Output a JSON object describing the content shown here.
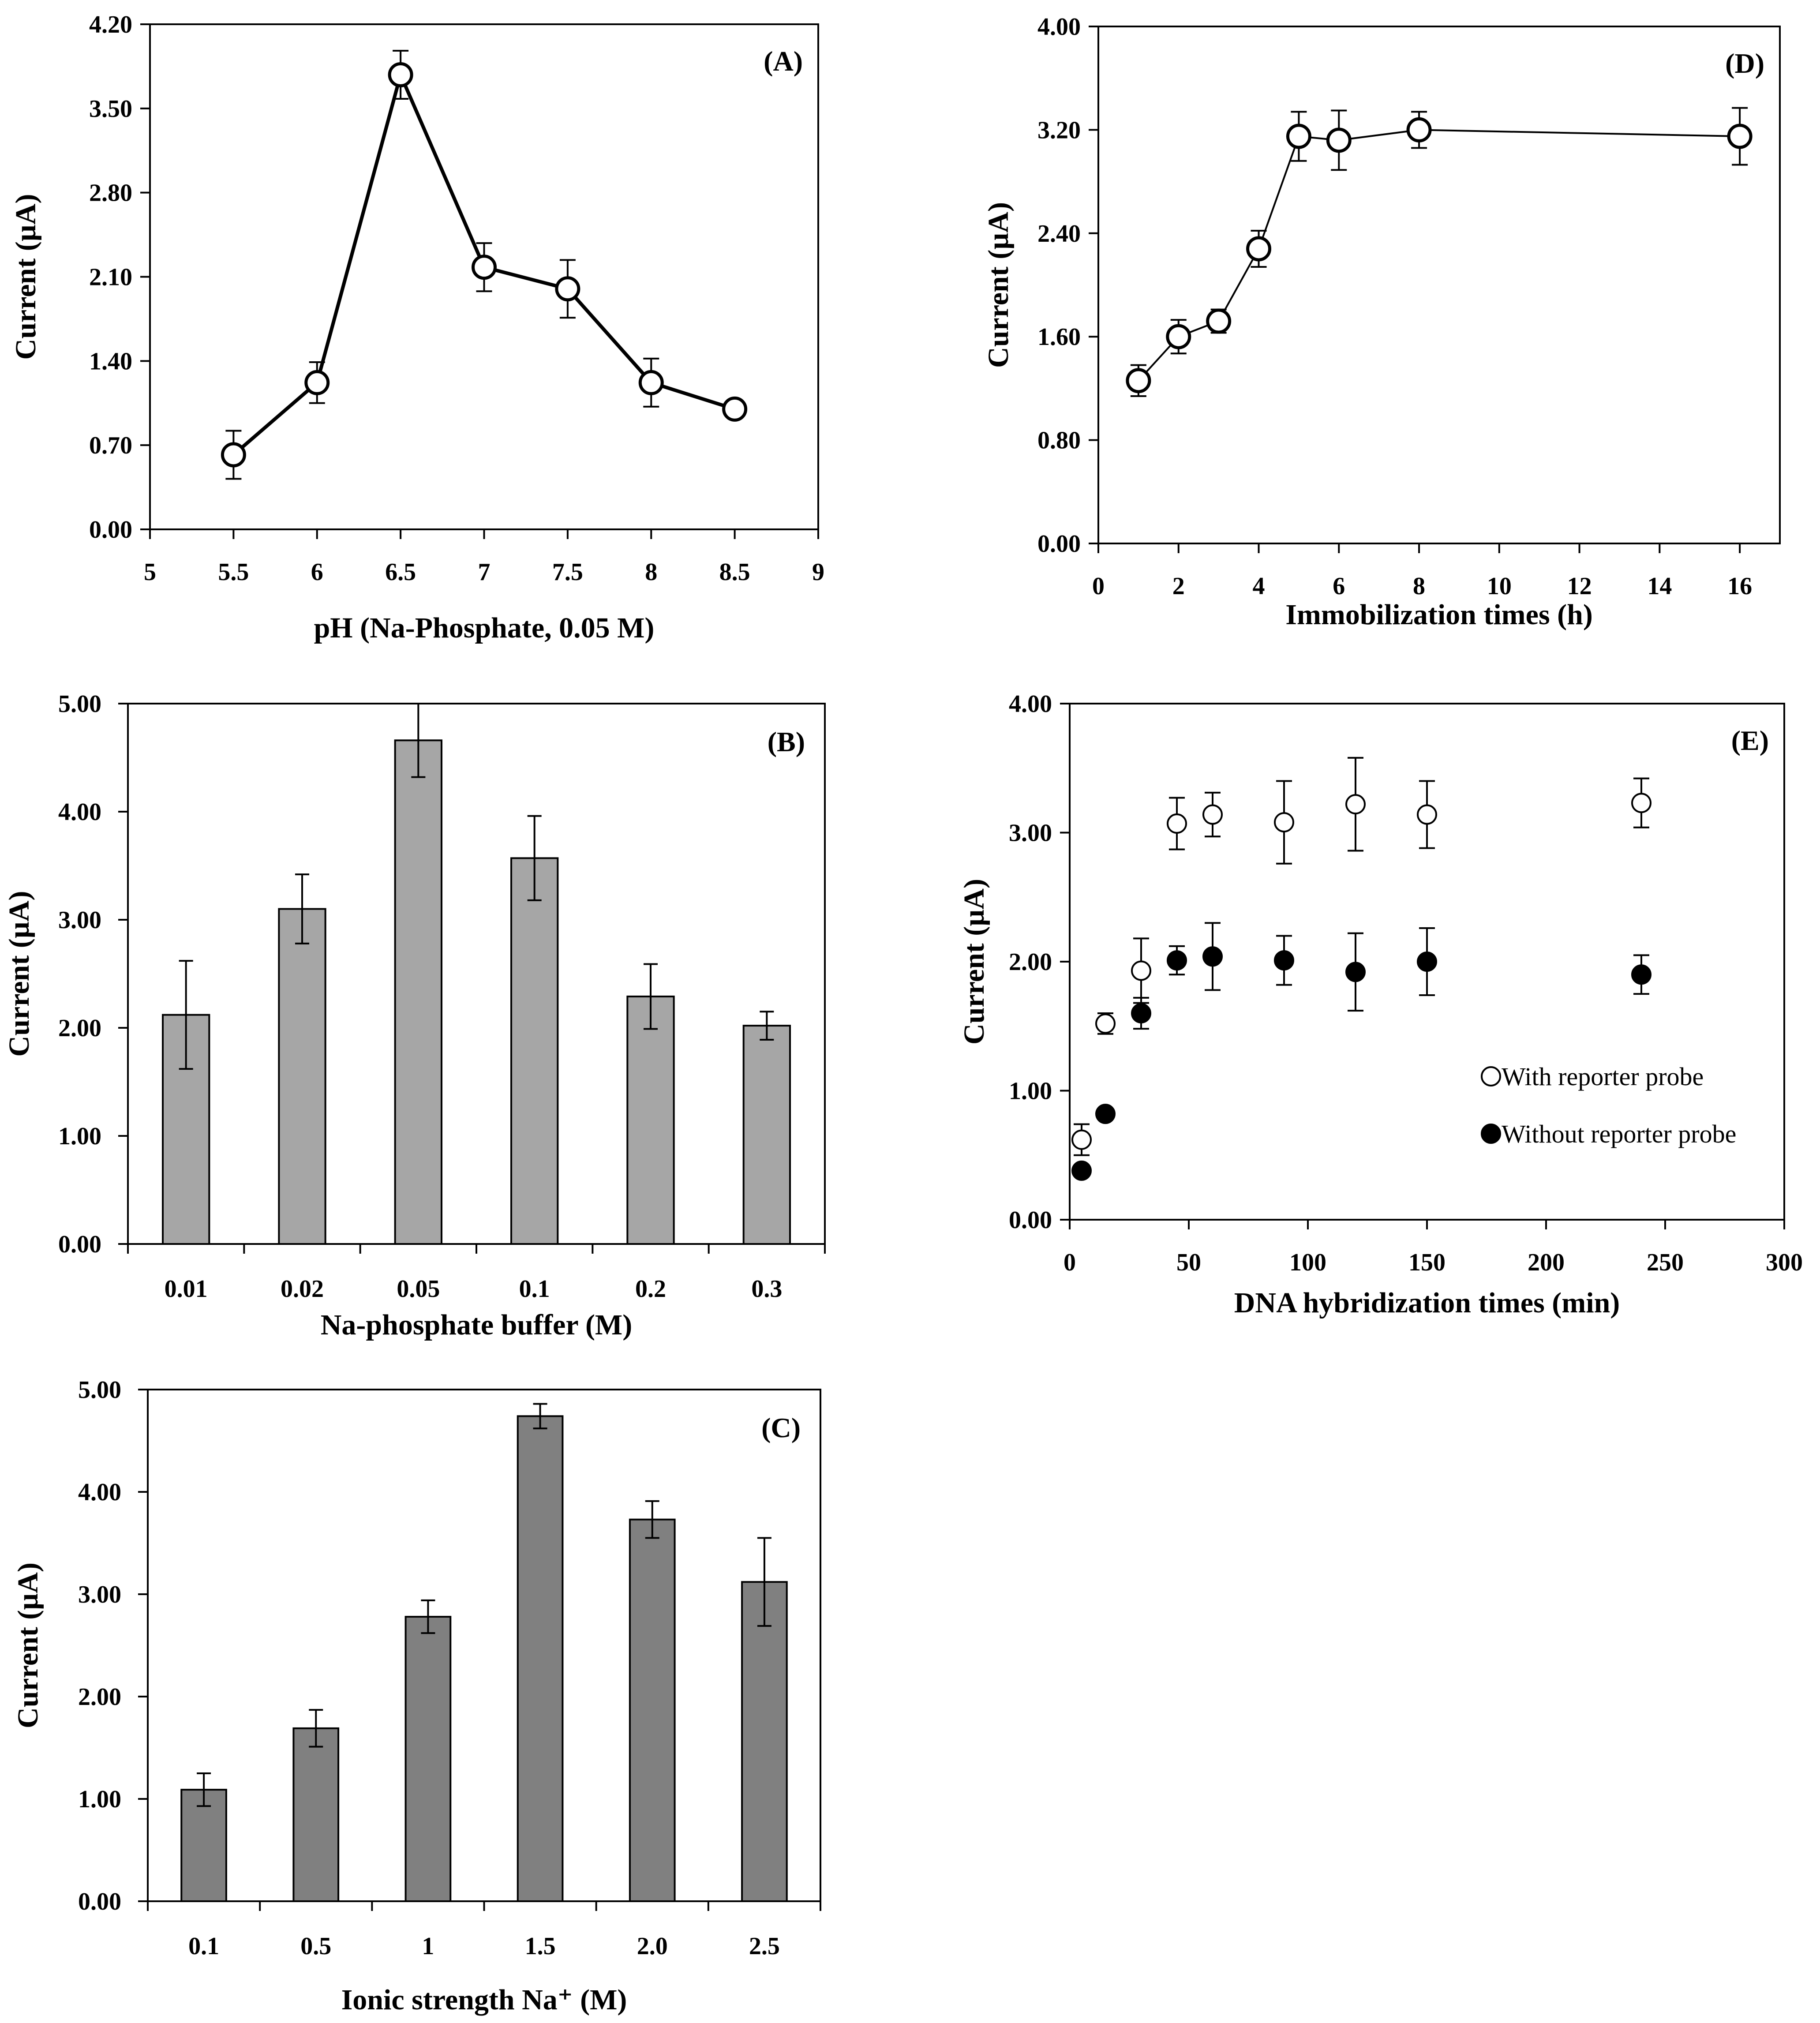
{
  "chart_data": [
    {
      "id": "A",
      "type": "line",
      "panel_label": "(A)",
      "ylabel": "Current (µA)",
      "xlabel": "pH (Na-Phosphate, 0.05 M)",
      "xlim": [
        5,
        9
      ],
      "ylim": [
        0,
        4.2
      ],
      "xticks": [
        5,
        5.5,
        6,
        6.5,
        7,
        7.5,
        8,
        8.5,
        9
      ],
      "xtick_labels": [
        "5",
        "5.5",
        "6",
        "6.5",
        "7",
        "7.5",
        "8",
        "8.5",
        "9"
      ],
      "yticks": [
        0,
        0.7,
        1.4,
        2.1,
        2.8,
        3.5,
        4.2
      ],
      "ytick_labels": [
        "0.00",
        "0.70",
        "1.40",
        "2.10",
        "2.80",
        "3.50",
        "4.20"
      ],
      "series": [
        {
          "name": "Current",
          "marker": "open-circle",
          "x": [
            5.5,
            6,
            6.5,
            7,
            7.5,
            8,
            8.5
          ],
          "y": [
            0.62,
            1.22,
            3.78,
            2.18,
            2.0,
            1.22,
            1.0
          ],
          "err": [
            0.2,
            0.17,
            0.2,
            0.2,
            0.24,
            0.2,
            0.0
          ]
        }
      ]
    },
    {
      "id": "B",
      "type": "bar",
      "panel_label": "(B)",
      "ylabel": "Current (µA)",
      "xlabel": "Na-phosphate buffer (M)",
      "ylim": [
        0,
        5
      ],
      "yticks": [
        0,
        1,
        2,
        3,
        4,
        5
      ],
      "ytick_labels": [
        "0.00",
        "1.00",
        "2.00",
        "3.00",
        "4.00",
        "5.00"
      ],
      "categories": [
        "0.01",
        "0.02",
        "0.05",
        "0.1",
        "0.2",
        "0.3"
      ],
      "bar_color": "#a6a6a6",
      "values": [
        2.12,
        3.1,
        4.66,
        3.57,
        2.29,
        2.02
      ],
      "err": [
        0.5,
        0.32,
        0.34,
        0.39,
        0.3,
        0.13
      ]
    },
    {
      "id": "C",
      "type": "bar",
      "panel_label": "(C)",
      "ylabel": "Current (µA)",
      "xlabel": "Ionic strength Na⁺ (M)",
      "ylim": [
        0,
        5
      ],
      "yticks": [
        0,
        1,
        2,
        3,
        4,
        5
      ],
      "ytick_labels": [
        "0.00",
        "1.00",
        "2.00",
        "3.00",
        "4.00",
        "5.00"
      ],
      "categories": [
        "0.1",
        "0.5",
        "1",
        "1.5",
        "2.0",
        "2.5"
      ],
      "bar_color": "#808080",
      "values": [
        1.09,
        1.69,
        2.78,
        4.74,
        3.73,
        3.12
      ],
      "err": [
        0.16,
        0.18,
        0.16,
        0.12,
        0.18,
        0.43
      ]
    },
    {
      "id": "D",
      "type": "line",
      "panel_label": "(D)",
      "ylabel": "Current (µA)",
      "xlabel": "Immobilization times (h)",
      "xlim": [
        0,
        17
      ],
      "ylim": [
        0,
        4
      ],
      "xticks": [
        0,
        2,
        4,
        6,
        8,
        10,
        12,
        14,
        16
      ],
      "xtick_labels": [
        "0",
        "2",
        "4",
        "6",
        "8",
        "10",
        "12",
        "14",
        "16"
      ],
      "yticks": [
        0,
        0.8,
        1.6,
        2.4,
        3.2,
        4.0
      ],
      "ytick_labels": [
        "0.00",
        "0.80",
        "1.60",
        "2.40",
        "3.20",
        "4.00"
      ],
      "series": [
        {
          "name": "Current",
          "marker": "open-circle",
          "x": [
            1,
            2,
            3,
            4,
            5,
            6,
            8,
            16
          ],
          "y": [
            1.26,
            1.6,
            1.72,
            2.28,
            3.15,
            3.12,
            3.2,
            3.15
          ],
          "err": [
            0.12,
            0.13,
            0.09,
            0.14,
            0.19,
            0.23,
            0.14,
            0.22
          ]
        }
      ]
    },
    {
      "id": "E",
      "type": "scatter",
      "panel_label": "(E)",
      "ylabel": "Current (µA)",
      "xlabel": "DNA hybridization times (min)",
      "xlim": [
        0,
        300
      ],
      "ylim": [
        0,
        4
      ],
      "xticks": [
        0,
        50,
        100,
        150,
        200,
        250,
        300
      ],
      "xtick_labels": [
        "0",
        "50",
        "100",
        "150",
        "200",
        "250",
        "300"
      ],
      "yticks": [
        0,
        1,
        2,
        3,
        4
      ],
      "ytick_labels": [
        "0.00",
        "1.00",
        "2.00",
        "3.00",
        "4.00"
      ],
      "legend_position": "right",
      "series": [
        {
          "name": "With reporter probe",
          "marker": "open-circle",
          "x": [
            5,
            15,
            30,
            45,
            60,
            90,
            120,
            150,
            240
          ],
          "y": [
            0.62,
            1.52,
            1.93,
            3.07,
            3.14,
            3.08,
            3.22,
            3.14,
            3.23
          ],
          "err": [
            0.12,
            0.08,
            0.25,
            0.2,
            0.17,
            0.32,
            0.36,
            0.26,
            0.19
          ]
        },
        {
          "name": "Without reporter probe",
          "marker": "filled-circle",
          "x": [
            5,
            15,
            30,
            45,
            60,
            90,
            120,
            150,
            240
          ],
          "y": [
            0.38,
            0.82,
            1.6,
            2.01,
            2.04,
            2.01,
            1.92,
            2.0,
            1.9
          ],
          "err": [
            0.0,
            0.0,
            0.12,
            0.11,
            0.26,
            0.19,
            0.3,
            0.26,
            0.15
          ]
        }
      ]
    }
  ]
}
